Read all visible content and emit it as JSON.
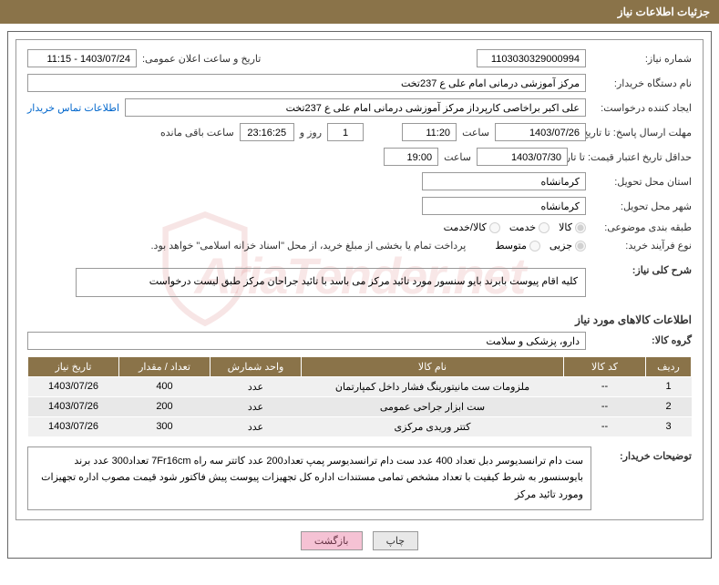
{
  "panel_title": "جزئیات اطلاعات نیاز",
  "labels": {
    "need_no": "شماره نیاز:",
    "pub_date": "تاریخ و ساعت اعلان عمومی:",
    "buyer_org": "نام دستگاه خریدار:",
    "requester": "ایجاد کننده درخواست:",
    "contact_link": "اطلاعات تماس خریدار",
    "reply_deadline": "مهلت ارسال پاسخ: تا تاریخ:",
    "hour": "ساعت",
    "day_and": "روز و",
    "remaining": "ساعت باقی مانده",
    "price_validity": "حداقل تاریخ اعتبار قیمت: تا تاریخ:",
    "delivery_province": "استان محل تحویل:",
    "delivery_city": "شهر محل تحویل:",
    "subject_class": "طبقه بندی موضوعی:",
    "radio_goods": "کالا",
    "radio_service": "خدمت",
    "radio_both": "کالا/خدمت",
    "buy_type": "نوع فرآیند خرید:",
    "radio_minor": "جزیی",
    "radio_medium": "متوسط",
    "pay_note": "پرداخت تمام یا بخشی از مبلغ خرید، از محل \"اسناد خزانه اسلامی\" خواهد بود.",
    "overall_desc": "شرح کلی نیاز:",
    "items_info": "اطلاعات کالاهای مورد نیاز",
    "goods_group": "گروه کالا:",
    "buyer_notes": "توضیحات خریدار:",
    "btn_print": "چاپ",
    "btn_back": "بازگشت"
  },
  "values": {
    "need_no": "1103030329000994",
    "pub_date": "1403/07/24 - 11:15",
    "buyer_org": "مرکز آموزشی درمانی امام علی ع 237تخت",
    "requester": "علی اکبر براخاصی کارپرداز  مرکز آموزشی درمانی امام علی ع 237تخت",
    "reply_date": "1403/07/26",
    "reply_hour": "11:20",
    "days_left": "1",
    "time_left": "23:16:25",
    "price_date": "1403/07/30",
    "price_hour": "19:00",
    "delivery_province": "کرمانشاه",
    "delivery_city": "کرمانشاه",
    "overall_desc": "کلیه اقام پیوست بابرند بایو سنسور مورد تائید مرکز می باسد با تائید جراحان مرکز طبق لیست درخواست",
    "goods_group": "دارو، پزشکی و سلامت",
    "buyer_notes": "ست دام ترانسدیوسر  دبل تعداد 400 عدد ست دام ترانسدیوسر پمپ تعداد200 عدد کاتتر سه راه 7Fr16cm تعداد300 عدد برند بایوسنسور به شرط کیفیت با تعداد مشخص تمامی مستندات اداره کل تجهیزات پیوست پیش فاکتور شود قیمت مصوب اداره تجهیزات ومورد تائید مرکز"
  },
  "table": {
    "columns": {
      "row": "ردیف",
      "code": "کد کالا",
      "name": "نام کالا",
      "unit": "واحد شمارش",
      "qty": "تعداد / مقدار",
      "date": "تاریخ نیاز"
    },
    "rows": [
      {
        "n": "1",
        "code": "--",
        "name": "ملزومات ست مانیتورینگ فشار داخل کمپارتمان",
        "unit": "عدد",
        "qty": "400",
        "date": "1403/07/26"
      },
      {
        "n": "2",
        "code": "--",
        "name": "ست ابزار جراحی عمومی",
        "unit": "عدد",
        "qty": "200",
        "date": "1403/07/26"
      },
      {
        "n": "3",
        "code": "--",
        "name": "کتتر وریدی مرکزی",
        "unit": "عدد",
        "qty": "300",
        "date": "1403/07/26"
      }
    ]
  },
  "colors": {
    "bar": "#8a7349",
    "border": "#999",
    "link": "#0066cc",
    "btn_back_bg": "#f5c2d4"
  }
}
